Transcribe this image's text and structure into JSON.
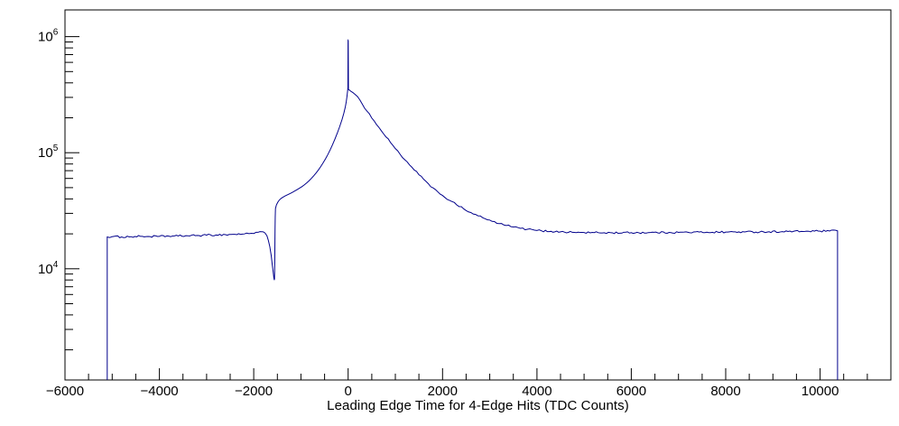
{
  "chart_data": {
    "type": "line",
    "title": "",
    "xlabel": "Leading Edge Time for 4-Edge Hits (TDC Counts)",
    "ylabel": "",
    "y_scale": "log",
    "grid": false,
    "legend": "none",
    "line_color": "#00008b",
    "frame_color": "#000000",
    "background": "#ffffff",
    "xlim": [
      -6000,
      11500
    ],
    "ylim": [
      1100,
      1700000
    ],
    "x_major_tick_values": [
      -6000,
      -4000,
      -2000,
      0,
      2000,
      4000,
      6000,
      8000,
      10000
    ],
    "x_tick_labels": [
      "−6000",
      "−4000",
      "−2000",
      "0",
      "2000",
      "4000",
      "6000",
      "8000",
      "10000"
    ],
    "x_minor_tick_step": 500,
    "y_major_decades": [
      4,
      5,
      6
    ],
    "y_tick_label_base": "10",
    "points": [
      [
        -5105,
        1100
      ],
      [
        -5105,
        18800
      ],
      [
        -5000,
        18900
      ],
      [
        -4800,
        18800
      ],
      [
        -4600,
        18900
      ],
      [
        -4400,
        19000
      ],
      [
        -4200,
        18950
      ],
      [
        -4000,
        19000
      ],
      [
        -3800,
        19100
      ],
      [
        -3600,
        19150
      ],
      [
        -3400,
        19250
      ],
      [
        -3200,
        19350
      ],
      [
        -3000,
        19450
      ],
      [
        -2800,
        19550
      ],
      [
        -2600,
        19650
      ],
      [
        -2400,
        19800
      ],
      [
        -2200,
        19950
      ],
      [
        -2050,
        20200
      ],
      [
        -1950,
        20600
      ],
      [
        -1870,
        20900
      ],
      [
        -1800,
        20800
      ],
      [
        -1760,
        20300
      ],
      [
        -1720,
        19200
      ],
      [
        -1690,
        17500
      ],
      [
        -1660,
        15500
      ],
      [
        -1630,
        13000
      ],
      [
        -1610,
        11000
      ],
      [
        -1590,
        9500
      ],
      [
        -1575,
        8400
      ],
      [
        -1565,
        8000
      ],
      [
        -1560,
        8200
      ],
      [
        -1555,
        12000
      ],
      [
        -1550,
        20000
      ],
      [
        -1545,
        28000
      ],
      [
        -1540,
        33000
      ],
      [
        -1520,
        35500
      ],
      [
        -1490,
        37500
      ],
      [
        -1460,
        39000
      ],
      [
        -1420,
        40400
      ],
      [
        -1380,
        41400
      ],
      [
        -1330,
        42500
      ],
      [
        -1280,
        43500
      ],
      [
        -1230,
        44500
      ],
      [
        -1180,
        45600
      ],
      [
        -1130,
        46800
      ],
      [
        -1080,
        48100
      ],
      [
        -1030,
        49500
      ],
      [
        -980,
        51000
      ],
      [
        -930,
        52800
      ],
      [
        -880,
        54800
      ],
      [
        -830,
        57200
      ],
      [
        -780,
        60000
      ],
      [
        -730,
        63200
      ],
      [
        -680,
        66800
      ],
      [
        -630,
        71000
      ],
      [
        -580,
        76000
      ],
      [
        -530,
        81800
      ],
      [
        -480,
        88500
      ],
      [
        -430,
        96500
      ],
      [
        -380,
        106000
      ],
      [
        -330,
        117500
      ],
      [
        -280,
        131000
      ],
      [
        -230,
        147500
      ],
      [
        -180,
        167500
      ],
      [
        -130,
        193000
      ],
      [
        -90,
        220000
      ],
      [
        -60,
        248000
      ],
      [
        -40,
        275000
      ],
      [
        -25,
        305000
      ],
      [
        -12,
        340000
      ],
      [
        -5,
        362000
      ],
      [
        -2,
        930000
      ],
      [
        2,
        925000
      ],
      [
        6,
        352000
      ],
      [
        20,
        348000
      ],
      [
        50,
        340000
      ],
      [
        100,
        330000
      ],
      [
        150,
        317000
      ],
      [
        200,
        304000
      ],
      [
        300,
        262000
      ],
      [
        400,
        228000
      ],
      [
        500,
        199000
      ],
      [
        600,
        175000
      ],
      [
        700,
        155000
      ],
      [
        800,
        137000
      ],
      [
        900,
        122000
      ],
      [
        1000,
        108500
      ],
      [
        1100,
        97000
      ],
      [
        1200,
        87000
      ],
      [
        1300,
        78500
      ],
      [
        1400,
        71000
      ],
      [
        1500,
        64500
      ],
      [
        1600,
        59000
      ],
      [
        1700,
        54000
      ],
      [
        1800,
        49700
      ],
      [
        1900,
        46000
      ],
      [
        2000,
        42800
      ],
      [
        2150,
        38800
      ],
      [
        2300,
        35500
      ],
      [
        2450,
        32800
      ],
      [
        2600,
        30500
      ],
      [
        2750,
        28600
      ],
      [
        2900,
        27000
      ],
      [
        3050,
        25600
      ],
      [
        3200,
        24500
      ],
      [
        3350,
        23600
      ],
      [
        3500,
        22900
      ],
      [
        3650,
        22300
      ],
      [
        3800,
        21900
      ],
      [
        3950,
        21500
      ],
      [
        4100,
        21200
      ],
      [
        4300,
        21000
      ],
      [
        4500,
        20800
      ],
      [
        4750,
        20600
      ],
      [
        5000,
        20500
      ],
      [
        5300,
        20450
      ],
      [
        5600,
        20400
      ],
      [
        6000,
        20450
      ],
      [
        6400,
        20500
      ],
      [
        6800,
        20550
      ],
      [
        7200,
        20600
      ],
      [
        7600,
        20650
      ],
      [
        8000,
        20700
      ],
      [
        8400,
        20750
      ],
      [
        8800,
        20800
      ],
      [
        9200,
        20900
      ],
      [
        9600,
        21000
      ],
      [
        10000,
        21100
      ],
      [
        10200,
        21150
      ],
      [
        10370,
        21200
      ],
      [
        10370,
        1100
      ]
    ]
  }
}
